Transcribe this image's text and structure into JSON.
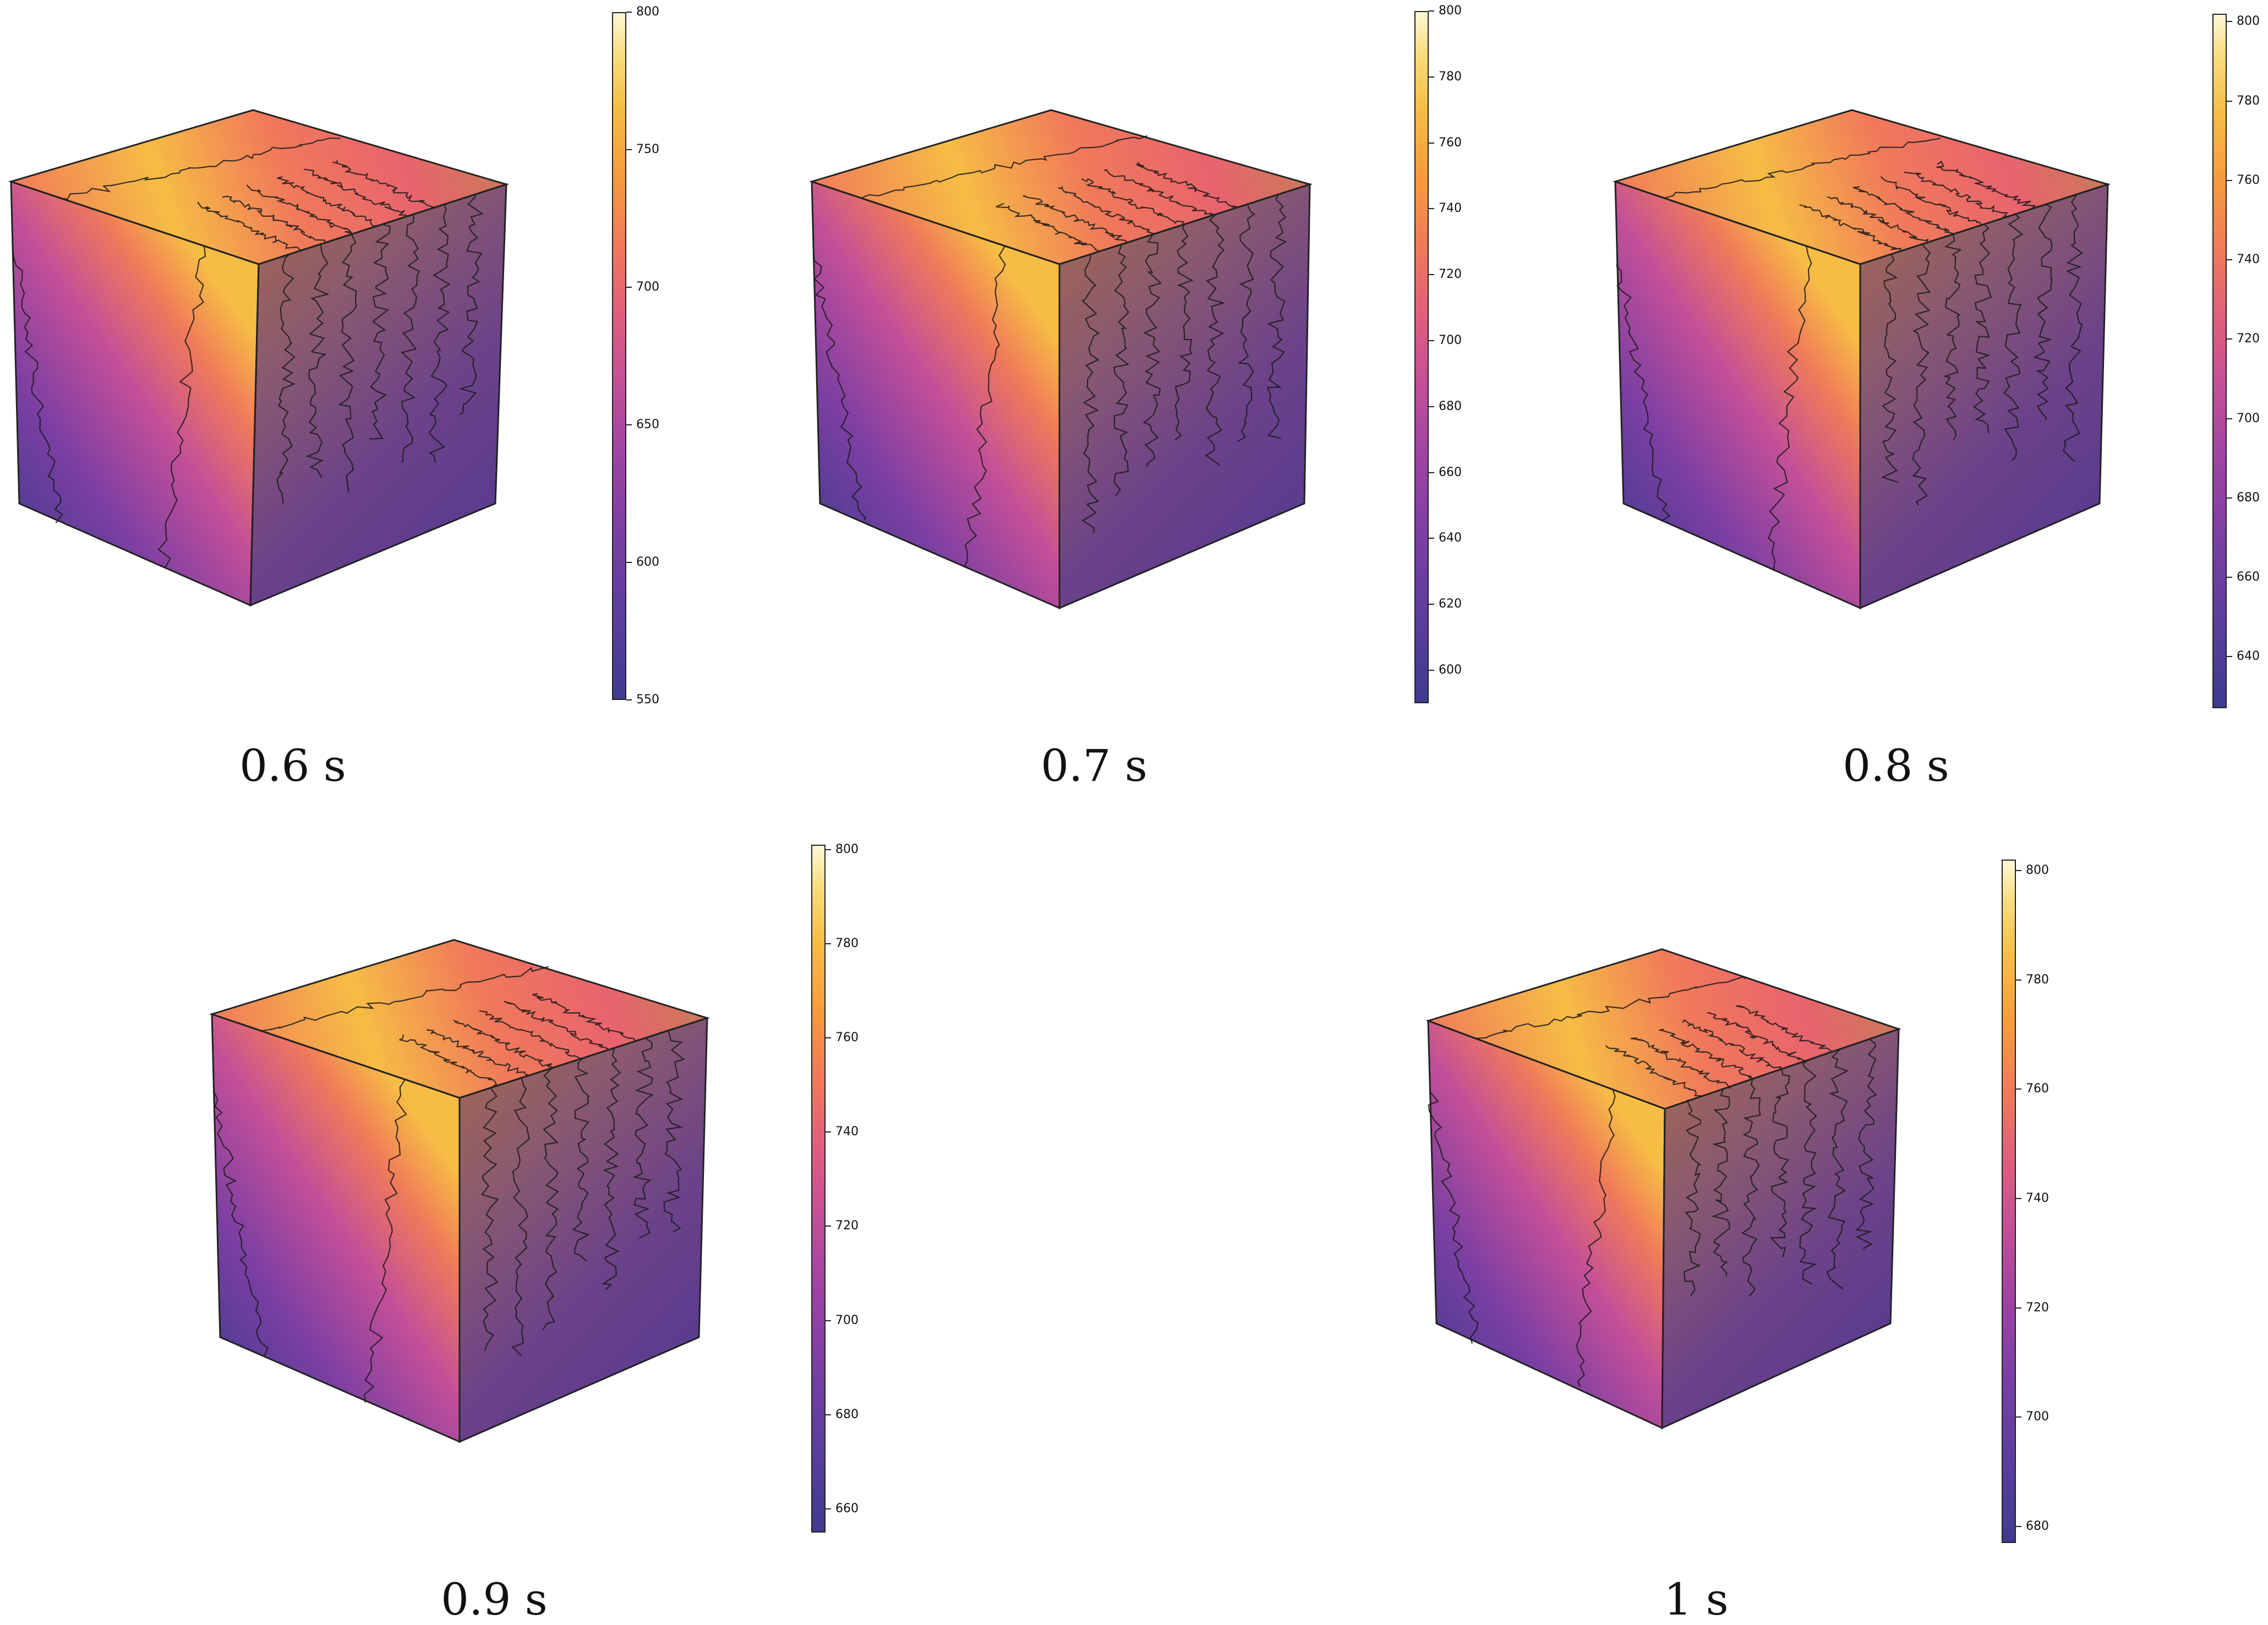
{
  "panels": [
    {
      "caption": "0.6 s",
      "colorbar": {
        "min": 550,
        "max": 800,
        "ticks": [
          "550",
          "600",
          "650",
          "700",
          "750",
          "800"
        ]
      }
    },
    {
      "caption": "0.7 s",
      "colorbar": {
        "min": 590,
        "max": 800,
        "ticks": [
          "600",
          "620",
          "640",
          "660",
          "680",
          "700",
          "720",
          "740",
          "760",
          "780",
          "800"
        ]
      }
    },
    {
      "caption": "0.8 s",
      "colorbar": {
        "min": 627,
        "max": 802,
        "ticks": [
          "640",
          "660",
          "680",
          "700",
          "720",
          "740",
          "760",
          "780",
          "800"
        ]
      }
    },
    {
      "caption": "0.9 s",
      "colorbar": {
        "min": 655,
        "max": 801,
        "ticks": [
          "660",
          "680",
          "700",
          "720",
          "740",
          "760",
          "780",
          "800"
        ]
      }
    },
    {
      "caption": "1 s",
      "colorbar": {
        "min": 677,
        "max": 802,
        "ticks": [
          "680",
          "700",
          "720",
          "740",
          "760",
          "780",
          "800"
        ]
      }
    }
  ],
  "colors": {
    "colormap": [
      "#3f3b8f",
      "#7a3fa3",
      "#c24f98",
      "#f07a5a",
      "#f6bd45",
      "#fff8d6"
    ],
    "outline": "#222222"
  }
}
